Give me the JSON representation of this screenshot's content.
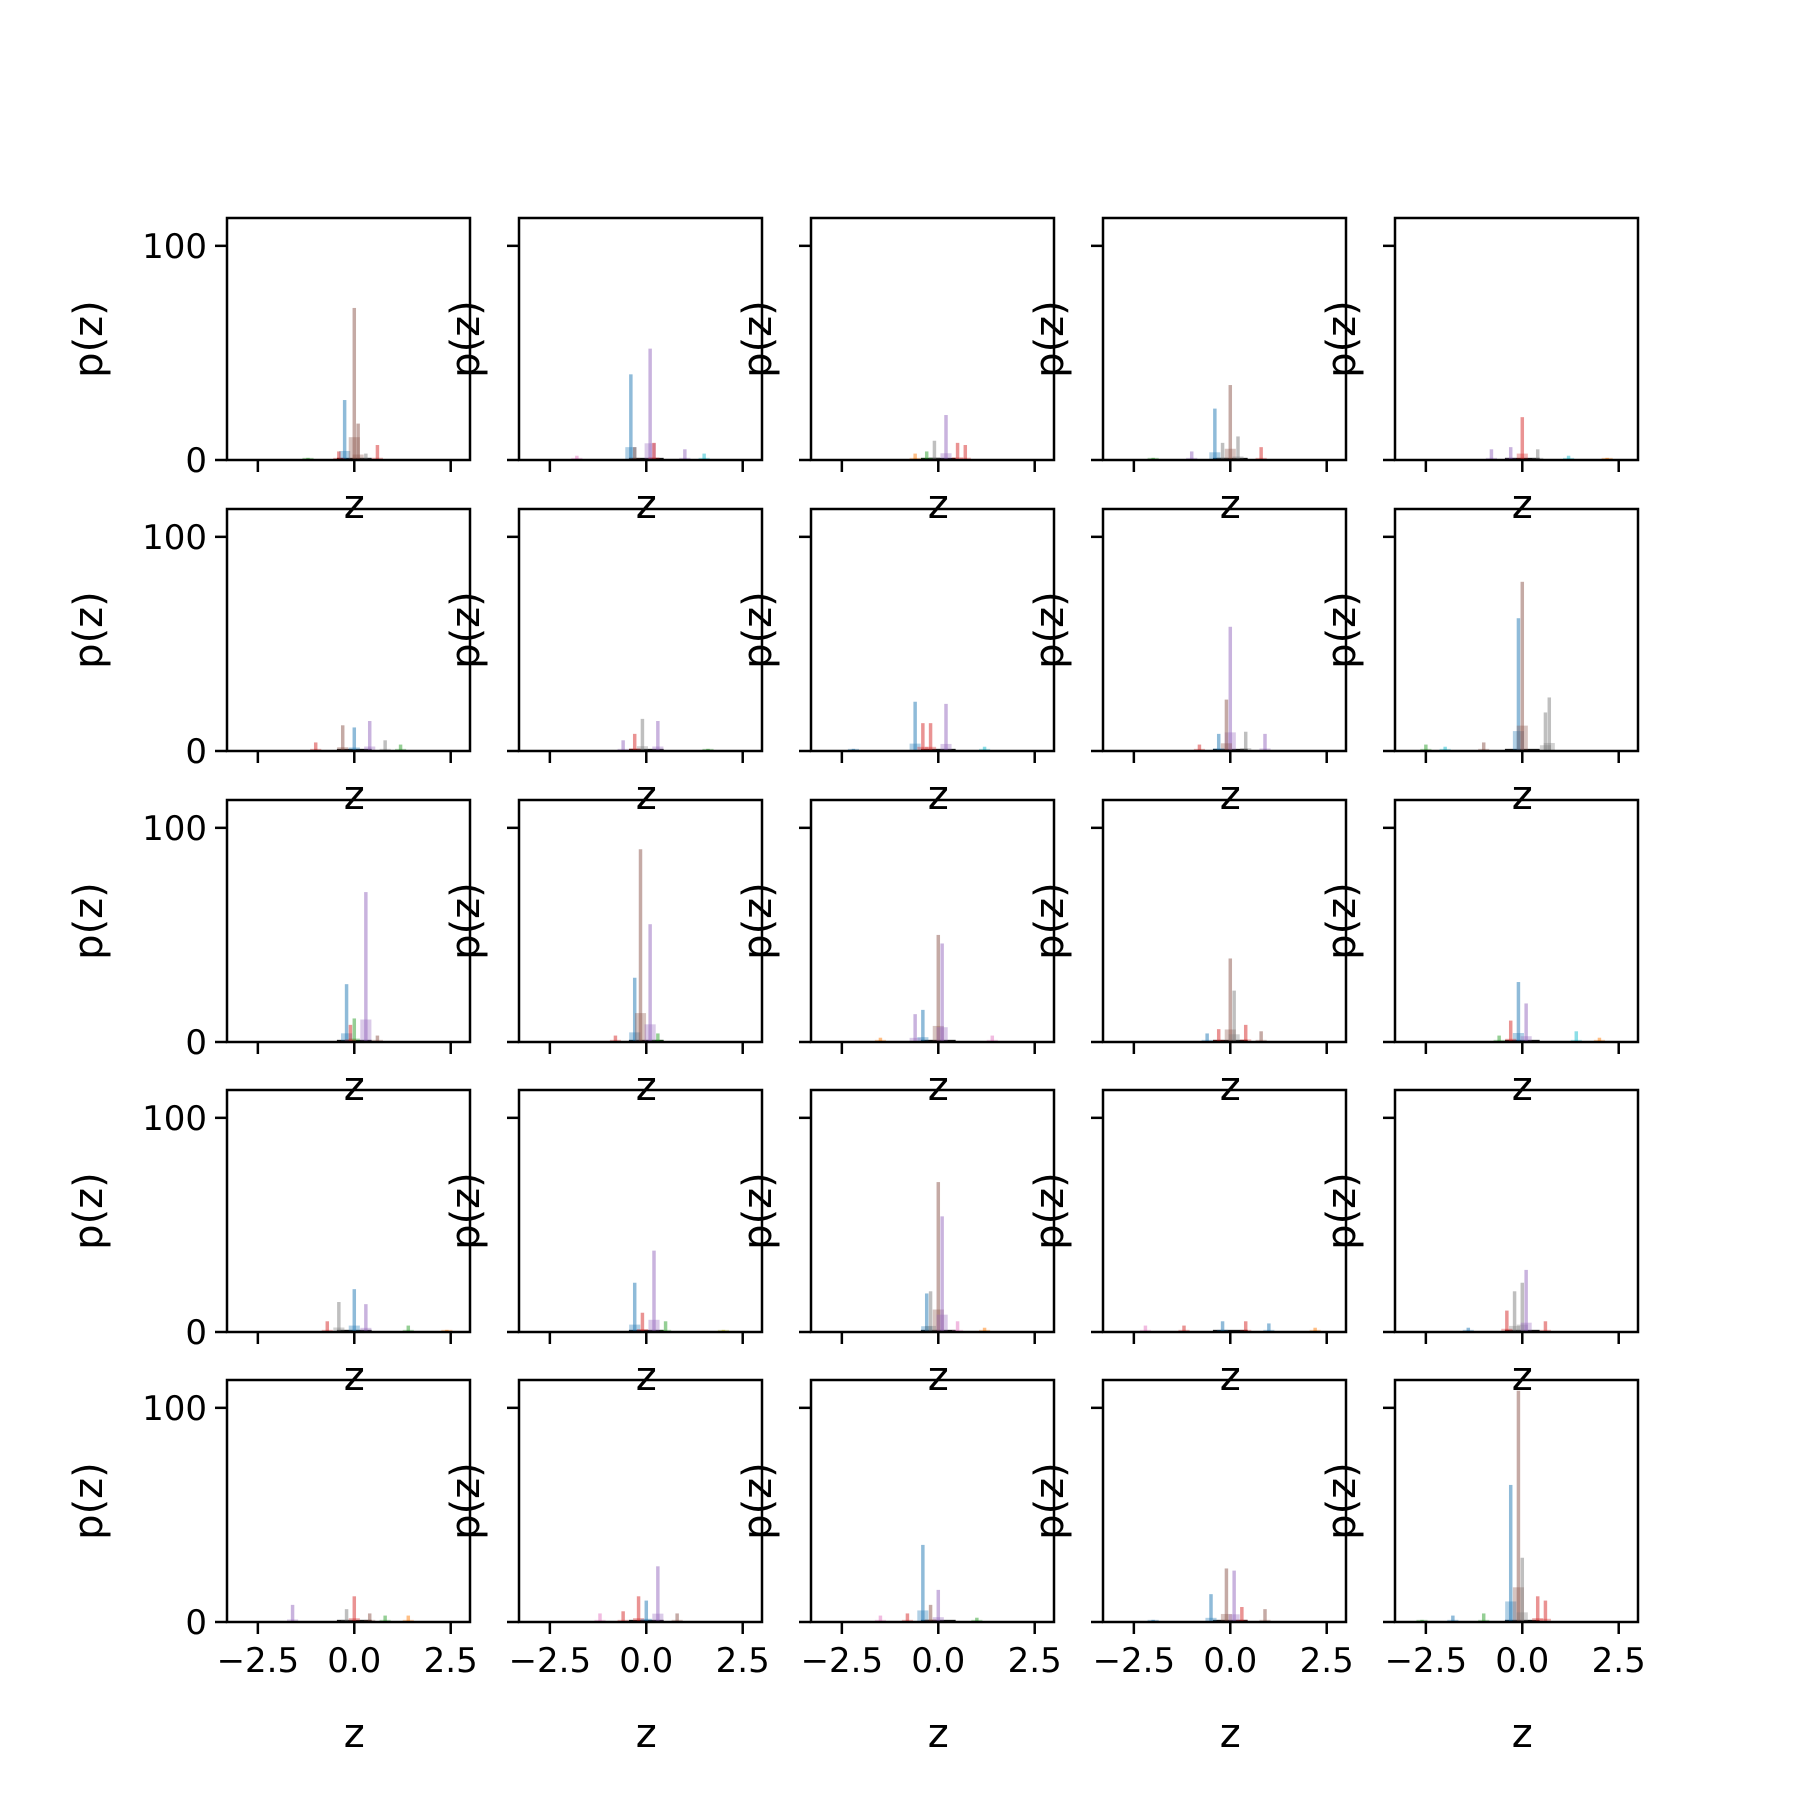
{
  "chart_data": {
    "type": "histogram-grid",
    "rows": 5,
    "cols": 5,
    "xlabel": "z",
    "ylabel": "p(z)",
    "xlim": [
      -3.3,
      3.0
    ],
    "ylim": [
      0,
      113
    ],
    "x_ticks": [
      -2.5,
      0.0,
      2.5
    ],
    "x_tick_labels": [
      "−2.5",
      "0.0",
      "2.5"
    ],
    "y_ticks": [
      0,
      100
    ],
    "y_tick_labels": [
      "0",
      "100"
    ],
    "sharey": true,
    "sharex": true,
    "colors": {
      "blue": "#1f77b4",
      "orange": "#ff7f0e",
      "green": "#2ca02c",
      "red": "#d62728",
      "purple": "#9467bd",
      "brown": "#8c564b",
      "pink": "#e377c2",
      "gray": "#7f7f7f",
      "olive": "#bcbd22",
      "cyan": "#17becf",
      "black": "#000000"
    },
    "panels": [
      {
        "row": 0,
        "col": 0,
        "bars": [
          {
            "x": -0.25,
            "h": 28,
            "c": "blue"
          },
          {
            "x": 0.0,
            "h": 71,
            "c": "brown"
          },
          {
            "x": 0.1,
            "h": 17,
            "c": "brown"
          },
          {
            "x": -0.4,
            "h": 4,
            "c": "red"
          },
          {
            "x": 0.6,
            "h": 7,
            "c": "red"
          },
          {
            "x": -1.2,
            "h": 1,
            "c": "green"
          },
          {
            "x": 0.3,
            "h": 3,
            "c": "gray"
          }
        ]
      },
      {
        "row": 0,
        "col": 1,
        "bars": [
          {
            "x": -0.4,
            "h": 40,
            "c": "blue"
          },
          {
            "x": 0.1,
            "h": 52,
            "c": "purple"
          },
          {
            "x": -0.3,
            "h": 6,
            "c": "brown"
          },
          {
            "x": 0.2,
            "h": 8,
            "c": "red"
          },
          {
            "x": 1.0,
            "h": 5,
            "c": "purple"
          },
          {
            "x": 1.5,
            "h": 3,
            "c": "cyan"
          },
          {
            "x": -1.8,
            "h": 2,
            "c": "pink"
          }
        ]
      },
      {
        "row": 0,
        "col": 2,
        "bars": [
          {
            "x": 0.2,
            "h": 21,
            "c": "purple"
          },
          {
            "x": -0.1,
            "h": 9,
            "c": "gray"
          },
          {
            "x": 0.5,
            "h": 8,
            "c": "red"
          },
          {
            "x": 0.7,
            "h": 7,
            "c": "red"
          },
          {
            "x": -0.6,
            "h": 3,
            "c": "orange"
          },
          {
            "x": -0.3,
            "h": 4,
            "c": "green"
          }
        ]
      },
      {
        "row": 0,
        "col": 3,
        "bars": [
          {
            "x": -0.4,
            "h": 24,
            "c": "blue"
          },
          {
            "x": 0.0,
            "h": 35,
            "c": "brown"
          },
          {
            "x": -0.2,
            "h": 8,
            "c": "gray"
          },
          {
            "x": 0.2,
            "h": 11,
            "c": "gray"
          },
          {
            "x": 0.8,
            "h": 6,
            "c": "red"
          },
          {
            "x": -1.0,
            "h": 4,
            "c": "purple"
          },
          {
            "x": -2.0,
            "h": 1,
            "c": "green"
          }
        ]
      },
      {
        "row": 0,
        "col": 4,
        "bars": [
          {
            "x": 0.0,
            "h": 20,
            "c": "red"
          },
          {
            "x": -0.3,
            "h": 6,
            "c": "purple"
          },
          {
            "x": 0.4,
            "h": 5,
            "c": "gray"
          },
          {
            "x": -0.8,
            "h": 5,
            "c": "purple"
          },
          {
            "x": 1.2,
            "h": 2,
            "c": "cyan"
          },
          {
            "x": 2.2,
            "h": 1,
            "c": "orange"
          }
        ]
      },
      {
        "row": 1,
        "col": 0,
        "bars": [
          {
            "x": -0.3,
            "h": 12,
            "c": "brown"
          },
          {
            "x": 0.0,
            "h": 11,
            "c": "blue"
          },
          {
            "x": 0.4,
            "h": 14,
            "c": "purple"
          },
          {
            "x": -1.0,
            "h": 4,
            "c": "red"
          },
          {
            "x": 0.8,
            "h": 5,
            "c": "gray"
          },
          {
            "x": 1.2,
            "h": 3,
            "c": "green"
          }
        ]
      },
      {
        "row": 1,
        "col": 1,
        "bars": [
          {
            "x": -0.1,
            "h": 15,
            "c": "gray"
          },
          {
            "x": 0.3,
            "h": 14,
            "c": "purple"
          },
          {
            "x": -0.6,
            "h": 5,
            "c": "purple"
          },
          {
            "x": -0.3,
            "h": 8,
            "c": "red"
          },
          {
            "x": 1.6,
            "h": 1,
            "c": "green"
          }
        ]
      },
      {
        "row": 1,
        "col": 2,
        "bars": [
          {
            "x": -0.6,
            "h": 23,
            "c": "blue"
          },
          {
            "x": 0.2,
            "h": 22,
            "c": "purple"
          },
          {
            "x": -0.4,
            "h": 13,
            "c": "red"
          },
          {
            "x": -0.2,
            "h": 13,
            "c": "red"
          },
          {
            "x": 1.2,
            "h": 2,
            "c": "cyan"
          },
          {
            "x": -2.2,
            "h": 1,
            "c": "blue"
          }
        ]
      },
      {
        "row": 1,
        "col": 3,
        "bars": [
          {
            "x": 0.0,
            "h": 58,
            "c": "purple"
          },
          {
            "x": -0.1,
            "h": 24,
            "c": "brown"
          },
          {
            "x": -0.3,
            "h": 8,
            "c": "blue"
          },
          {
            "x": 0.4,
            "h": 9,
            "c": "gray"
          },
          {
            "x": 0.9,
            "h": 8,
            "c": "purple"
          },
          {
            "x": -0.8,
            "h": 3,
            "c": "red"
          }
        ]
      },
      {
        "row": 1,
        "col": 4,
        "bars": [
          {
            "x": -0.1,
            "h": 62,
            "c": "blue"
          },
          {
            "x": 0.0,
            "h": 79,
            "c": "brown"
          },
          {
            "x": 0.7,
            "h": 25,
            "c": "gray"
          },
          {
            "x": 0.6,
            "h": 18,
            "c": "gray"
          },
          {
            "x": -1.0,
            "h": 4,
            "c": "brown"
          },
          {
            "x": -2.5,
            "h": 3,
            "c": "green"
          },
          {
            "x": -2.0,
            "h": 2,
            "c": "cyan"
          }
        ]
      },
      {
        "row": 2,
        "col": 0,
        "bars": [
          {
            "x": -0.2,
            "h": 27,
            "c": "blue"
          },
          {
            "x": 0.3,
            "h": 70,
            "c": "purple"
          },
          {
            "x": 0.0,
            "h": 11,
            "c": "green"
          },
          {
            "x": -0.1,
            "h": 8,
            "c": "red"
          },
          {
            "x": 0.6,
            "h": 3,
            "c": "brown"
          }
        ]
      },
      {
        "row": 2,
        "col": 1,
        "bars": [
          {
            "x": -0.3,
            "h": 30,
            "c": "blue"
          },
          {
            "x": -0.15,
            "h": 90,
            "c": "brown"
          },
          {
            "x": 0.1,
            "h": 55,
            "c": "purple"
          },
          {
            "x": 0.3,
            "h": 4,
            "c": "green"
          },
          {
            "x": -0.8,
            "h": 3,
            "c": "red"
          }
        ]
      },
      {
        "row": 2,
        "col": 2,
        "bars": [
          {
            "x": 0.0,
            "h": 50,
            "c": "brown"
          },
          {
            "x": 0.1,
            "h": 46,
            "c": "purple"
          },
          {
            "x": -0.4,
            "h": 15,
            "c": "blue"
          },
          {
            "x": -0.6,
            "h": 13,
            "c": "purple"
          },
          {
            "x": -1.5,
            "h": 2,
            "c": "orange"
          },
          {
            "x": 1.4,
            "h": 3,
            "c": "pink"
          }
        ]
      },
      {
        "row": 2,
        "col": 3,
        "bars": [
          {
            "x": 0.0,
            "h": 39,
            "c": "brown"
          },
          {
            "x": 0.1,
            "h": 24,
            "c": "gray"
          },
          {
            "x": -0.3,
            "h": 6,
            "c": "red"
          },
          {
            "x": 0.4,
            "h": 8,
            "c": "red"
          },
          {
            "x": -0.6,
            "h": 4,
            "c": "blue"
          },
          {
            "x": 0.8,
            "h": 5,
            "c": "brown"
          }
        ]
      },
      {
        "row": 2,
        "col": 4,
        "bars": [
          {
            "x": -0.1,
            "h": 28,
            "c": "blue"
          },
          {
            "x": 0.1,
            "h": 18,
            "c": "purple"
          },
          {
            "x": -0.3,
            "h": 10,
            "c": "red"
          },
          {
            "x": 1.4,
            "h": 5,
            "c": "cyan"
          },
          {
            "x": 2.0,
            "h": 2,
            "c": "orange"
          },
          {
            "x": -0.6,
            "h": 3,
            "c": "green"
          }
        ]
      },
      {
        "row": 3,
        "col": 0,
        "bars": [
          {
            "x": -0.4,
            "h": 14,
            "c": "gray"
          },
          {
            "x": 0.0,
            "h": 20,
            "c": "blue"
          },
          {
            "x": 0.3,
            "h": 13,
            "c": "purple"
          },
          {
            "x": -0.7,
            "h": 5,
            "c": "red"
          },
          {
            "x": 1.4,
            "h": 3,
            "c": "green"
          },
          {
            "x": 2.4,
            "h": 1,
            "c": "orange"
          }
        ]
      },
      {
        "row": 3,
        "col": 1,
        "bars": [
          {
            "x": -0.3,
            "h": 23,
            "c": "blue"
          },
          {
            "x": 0.2,
            "h": 38,
            "c": "purple"
          },
          {
            "x": -0.1,
            "h": 9,
            "c": "red"
          },
          {
            "x": 0.5,
            "h": 5,
            "c": "green"
          },
          {
            "x": 2.0,
            "h": 1,
            "c": "olive"
          }
        ]
      },
      {
        "row": 3,
        "col": 2,
        "bars": [
          {
            "x": -0.3,
            "h": 18,
            "c": "blue"
          },
          {
            "x": 0.0,
            "h": 70,
            "c": "brown"
          },
          {
            "x": 0.1,
            "h": 54,
            "c": "purple"
          },
          {
            "x": -0.2,
            "h": 19,
            "c": "gray"
          },
          {
            "x": 0.5,
            "h": 5,
            "c": "pink"
          },
          {
            "x": 1.2,
            "h": 2,
            "c": "orange"
          }
        ]
      },
      {
        "row": 3,
        "col": 3,
        "bars": [
          {
            "x": -2.2,
            "h": 3,
            "c": "pink"
          },
          {
            "x": -1.2,
            "h": 3,
            "c": "red"
          },
          {
            "x": -0.2,
            "h": 5,
            "c": "blue"
          },
          {
            "x": 0.4,
            "h": 5,
            "c": "red"
          },
          {
            "x": 1.0,
            "h": 4,
            "c": "blue"
          },
          {
            "x": 2.2,
            "h": 2,
            "c": "orange"
          }
        ]
      },
      {
        "row": 3,
        "col": 4,
        "bars": [
          {
            "x": -0.2,
            "h": 19,
            "c": "gray"
          },
          {
            "x": 0.0,
            "h": 23,
            "c": "gray"
          },
          {
            "x": 0.1,
            "h": 29,
            "c": "purple"
          },
          {
            "x": -0.4,
            "h": 10,
            "c": "red"
          },
          {
            "x": 0.6,
            "h": 5,
            "c": "red"
          },
          {
            "x": -1.4,
            "h": 2,
            "c": "blue"
          }
        ]
      },
      {
        "row": 4,
        "col": 0,
        "bars": [
          {
            "x": -1.6,
            "h": 8,
            "c": "purple"
          },
          {
            "x": 0.0,
            "h": 12,
            "c": "red"
          },
          {
            "x": -0.2,
            "h": 6,
            "c": "gray"
          },
          {
            "x": 0.4,
            "h": 4,
            "c": "brown"
          },
          {
            "x": 1.4,
            "h": 3,
            "c": "orange"
          },
          {
            "x": 0.8,
            "h": 3,
            "c": "green"
          }
        ]
      },
      {
        "row": 4,
        "col": 1,
        "bars": [
          {
            "x": 0.3,
            "h": 26,
            "c": "purple"
          },
          {
            "x": -0.2,
            "h": 12,
            "c": "red"
          },
          {
            "x": 0.0,
            "h": 10,
            "c": "blue"
          },
          {
            "x": -0.6,
            "h": 5,
            "c": "red"
          },
          {
            "x": -1.2,
            "h": 4,
            "c": "pink"
          },
          {
            "x": 0.8,
            "h": 4,
            "c": "brown"
          }
        ]
      },
      {
        "row": 4,
        "col": 2,
        "bars": [
          {
            "x": -0.4,
            "h": 36,
            "c": "blue"
          },
          {
            "x": 0.0,
            "h": 15,
            "c": "purple"
          },
          {
            "x": -0.2,
            "h": 8,
            "c": "brown"
          },
          {
            "x": -0.8,
            "h": 4,
            "c": "red"
          },
          {
            "x": -1.5,
            "h": 3,
            "c": "pink"
          },
          {
            "x": 1.0,
            "h": 2,
            "c": "green"
          }
        ]
      },
      {
        "row": 4,
        "col": 3,
        "bars": [
          {
            "x": -0.1,
            "h": 25,
            "c": "brown"
          },
          {
            "x": 0.1,
            "h": 24,
            "c": "purple"
          },
          {
            "x": -0.5,
            "h": 13,
            "c": "blue"
          },
          {
            "x": 0.3,
            "h": 7,
            "c": "red"
          },
          {
            "x": 0.9,
            "h": 6,
            "c": "brown"
          },
          {
            "x": -2.0,
            "h": 1,
            "c": "blue"
          }
        ]
      },
      {
        "row": 4,
        "col": 4,
        "bars": [
          {
            "x": -0.3,
            "h": 64,
            "c": "blue"
          },
          {
            "x": -0.1,
            "h": 108,
            "c": "brown"
          },
          {
            "x": 0.0,
            "h": 30,
            "c": "gray"
          },
          {
            "x": 0.4,
            "h": 12,
            "c": "red"
          },
          {
            "x": 0.6,
            "h": 10,
            "c": "red"
          },
          {
            "x": -1.0,
            "h": 4,
            "c": "green"
          },
          {
            "x": -1.8,
            "h": 3,
            "c": "blue"
          },
          {
            "x": -2.6,
            "h": 1,
            "c": "green"
          }
        ]
      }
    ]
  }
}
